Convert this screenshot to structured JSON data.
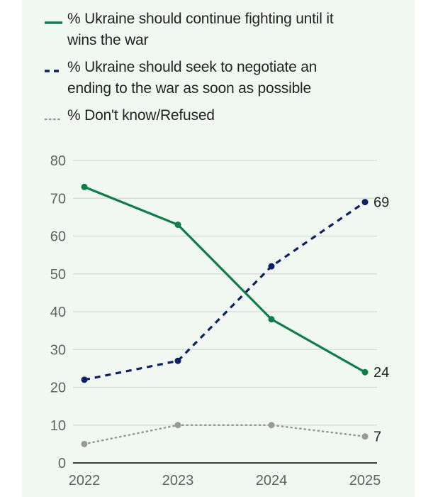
{
  "chart_data": {
    "type": "line",
    "title": "",
    "xlabel": "",
    "ylabel": "",
    "x": [
      "2022",
      "2023",
      "2024",
      "2025"
    ],
    "ylim": [
      0,
      80
    ],
    "yticks": [
      "0",
      "10",
      "20",
      "30",
      "40",
      "50",
      "60",
      "70",
      "80"
    ],
    "grid": true,
    "legend_position": "top",
    "series": [
      {
        "name": "% Ukraine should continue fighting until it wins the war",
        "style": "solid",
        "color": "#0f7d4a",
        "values": [
          73,
          63,
          38,
          24
        ],
        "end_label": "24"
      },
      {
        "name": "% Ukraine should seek to negotiate an ending to the war as soon as possible",
        "style": "dashed",
        "color": "#0b2161",
        "values": [
          22,
          27,
          52,
          69
        ],
        "end_label": "69"
      },
      {
        "name": "% Don't know/Refused",
        "style": "dotted",
        "color": "#9a9a9a",
        "values": [
          5,
          10,
          10,
          7
        ],
        "end_label": "7"
      }
    ]
  },
  "legend": {
    "items": [
      {
        "label": "% Ukraine should continue fighting until it wins the war"
      },
      {
        "label": "% Ukraine should seek to negotiate an ending to the war as soon as possible"
      },
      {
        "label": "% Don't know/Refused"
      }
    ]
  }
}
